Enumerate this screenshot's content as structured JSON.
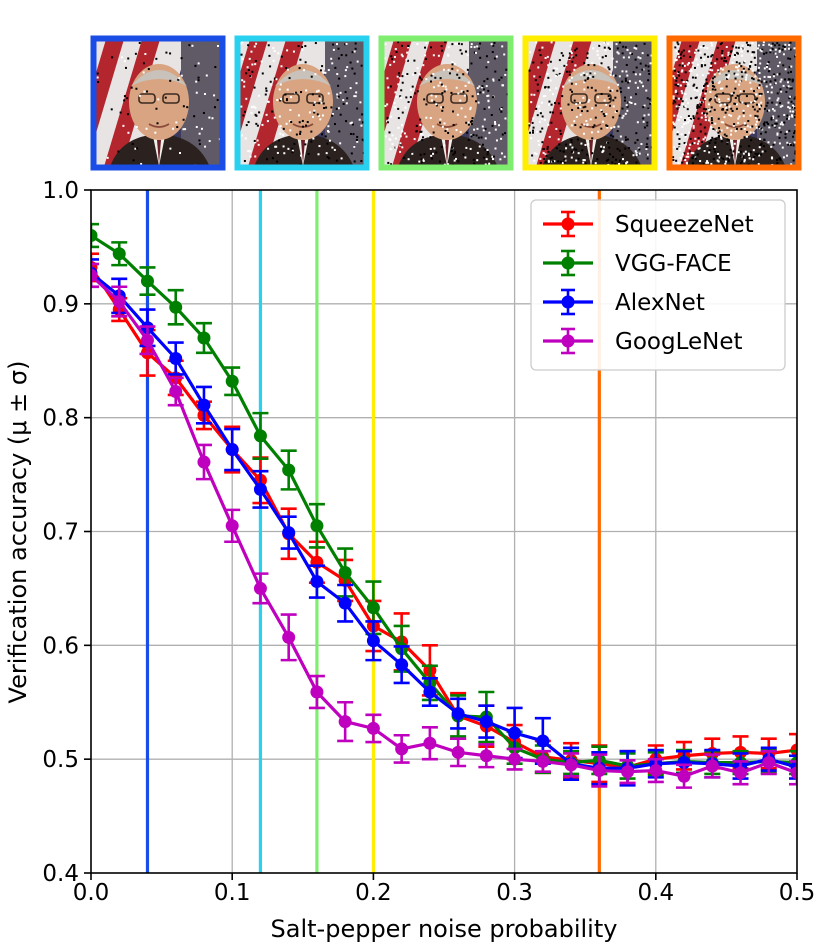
{
  "chart_data": {
    "type": "line",
    "title": "",
    "xlabel": "Salt-pepper noise probability",
    "ylabel": "Verification accuracy (μ ± σ)",
    "xlim": [
      0.0,
      0.5
    ],
    "ylim": [
      0.4,
      1.0
    ],
    "xticks": [
      0.0,
      0.1,
      0.2,
      0.3,
      0.4,
      0.5
    ],
    "xtick_labels": [
      "0.0",
      "0.1",
      "0.2",
      "0.3",
      "0.4",
      "0.5"
    ],
    "yticks": [
      0.4,
      0.5,
      0.6,
      0.7,
      0.8,
      0.9,
      1.0
    ],
    "ytick_labels": [
      "0.4",
      "0.5",
      "0.6",
      "0.7",
      "0.8",
      "0.9",
      "1.0"
    ],
    "grid": true,
    "legend_position": "top-right",
    "x": [
      0.0,
      0.02,
      0.04,
      0.06,
      0.08,
      0.1,
      0.12,
      0.14,
      0.16,
      0.18,
      0.2,
      0.22,
      0.24,
      0.26,
      0.28,
      0.3,
      0.32,
      0.34,
      0.36,
      0.38,
      0.4,
      0.42,
      0.44,
      0.46,
      0.48,
      0.5
    ],
    "series": [
      {
        "name": "SqueezeNet",
        "color": "#ff0000",
        "values": [
          0.932,
          0.895,
          0.857,
          0.835,
          0.802,
          0.772,
          0.745,
          0.698,
          0.673,
          0.657,
          0.617,
          0.603,
          0.578,
          0.538,
          0.529,
          0.515,
          0.502,
          0.499,
          0.496,
          0.493,
          0.5,
          0.503,
          0.505,
          0.506,
          0.505,
          0.508
        ],
        "errors": [
          0.012,
          0.01,
          0.02,
          0.015,
          0.012,
          0.02,
          0.02,
          0.022,
          0.018,
          0.018,
          0.022,
          0.025,
          0.022,
          0.02,
          0.018,
          0.015,
          0.014,
          0.015,
          0.016,
          0.014,
          0.012,
          0.012,
          0.013,
          0.014,
          0.013,
          0.014
        ]
      },
      {
        "name": "VGG-FACE",
        "color": "#008000",
        "values": [
          0.96,
          0.944,
          0.92,
          0.897,
          0.87,
          0.832,
          0.784,
          0.754,
          0.705,
          0.664,
          0.633,
          0.597,
          0.567,
          0.538,
          0.537,
          0.51,
          0.5,
          0.497,
          0.499,
          0.494,
          0.496,
          0.498,
          0.497,
          0.497,
          0.498,
          0.497
        ],
        "errors": [
          0.01,
          0.01,
          0.012,
          0.015,
          0.013,
          0.012,
          0.02,
          0.017,
          0.019,
          0.021,
          0.023,
          0.02,
          0.015,
          0.018,
          0.022,
          0.014,
          0.012,
          0.01,
          0.012,
          0.011,
          0.01,
          0.01,
          0.01,
          0.01,
          0.01,
          0.01
        ]
      },
      {
        "name": "AlexNet",
        "color": "#0000ff",
        "values": [
          0.927,
          0.907,
          0.879,
          0.852,
          0.811,
          0.772,
          0.737,
          0.699,
          0.656,
          0.637,
          0.604,
          0.583,
          0.559,
          0.54,
          0.533,
          0.523,
          0.516,
          0.496,
          0.492,
          0.492,
          0.496,
          0.497,
          0.496,
          0.494,
          0.5,
          0.493
        ],
        "errors": [
          0.012,
          0.015,
          0.016,
          0.014,
          0.016,
          0.018,
          0.016,
          0.014,
          0.014,
          0.016,
          0.017,
          0.016,
          0.012,
          0.013,
          0.014,
          0.022,
          0.02,
          0.014,
          0.014,
          0.015,
          0.012,
          0.01,
          0.012,
          0.011,
          0.01,
          0.01
        ]
      },
      {
        "name": "GoogLeNet",
        "color": "#bf00bf",
        "values": [
          0.925,
          0.902,
          0.868,
          0.823,
          0.761,
          0.705,
          0.65,
          0.607,
          0.559,
          0.533,
          0.527,
          0.509,
          0.514,
          0.506,
          0.503,
          0.5,
          0.498,
          0.495,
          0.49,
          0.489,
          0.49,
          0.485,
          0.494,
          0.488,
          0.497,
          0.488
        ],
        "errors": [
          0.01,
          0.013,
          0.012,
          0.012,
          0.015,
          0.014,
          0.013,
          0.02,
          0.014,
          0.017,
          0.012,
          0.012,
          0.014,
          0.012,
          0.01,
          0.009,
          0.009,
          0.01,
          0.014,
          0.01,
          0.01,
          0.01,
          0.01,
          0.01,
          0.01,
          0.01
        ]
      }
    ],
    "vertical_markers": [
      {
        "x": 0.04,
        "color": "#1a4de6"
      },
      {
        "x": 0.12,
        "color": "#29d1f0"
      },
      {
        "x": 0.16,
        "color": "#7fee6f"
      },
      {
        "x": 0.2,
        "color": "#ffee00"
      },
      {
        "x": 0.36,
        "color": "#ff6a00"
      }
    ],
    "thumbnails": [
      {
        "noise": 0.04,
        "border": "#1a4de6"
      },
      {
        "noise": 0.12,
        "border": "#29d1f0"
      },
      {
        "noise": 0.16,
        "border": "#7fee6f"
      },
      {
        "noise": 0.2,
        "border": "#ffee00"
      },
      {
        "noise": 0.36,
        "border": "#ff6a00"
      }
    ]
  }
}
